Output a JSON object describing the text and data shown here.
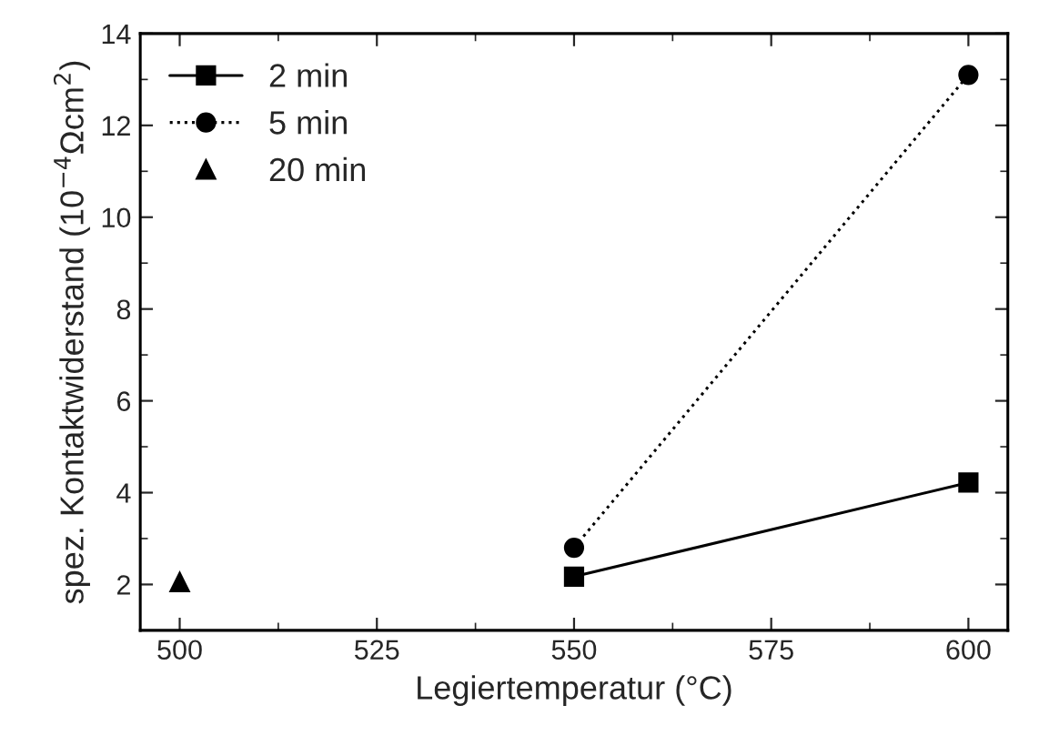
{
  "chart_data": {
    "type": "line",
    "xlabel": "Legiertemperatur (°C)",
    "ylabel": "spez. Kontaktwiderstand (10$^{−4}$Ωcm$^{2}$)",
    "xlim": [
      495,
      605
    ],
    "xticks": [
      500,
      525,
      550,
      575,
      600
    ],
    "ylim": [
      1,
      14
    ],
    "yticks": [
      2,
      4,
      6,
      8,
      10,
      12,
      14
    ],
    "grid": false,
    "legend": "top left",
    "series": [
      {
        "name": "2 min",
        "color": "#000000",
        "x": [
          550,
          600
        ],
        "values": [
          2.17,
          4.22
        ],
        "marker": "square",
        "line_style": "solid"
      },
      {
        "name": "5 min",
        "color": "#000000",
        "x": [
          550,
          600
        ],
        "values": [
          2.8,
          13.1
        ],
        "marker": "circle",
        "line_style": "dotted"
      },
      {
        "name": "20 min",
        "type": "scatter",
        "color": "#000000",
        "x": [
          500
        ],
        "values": [
          2.05
        ],
        "marker": "triangle"
      }
    ]
  }
}
